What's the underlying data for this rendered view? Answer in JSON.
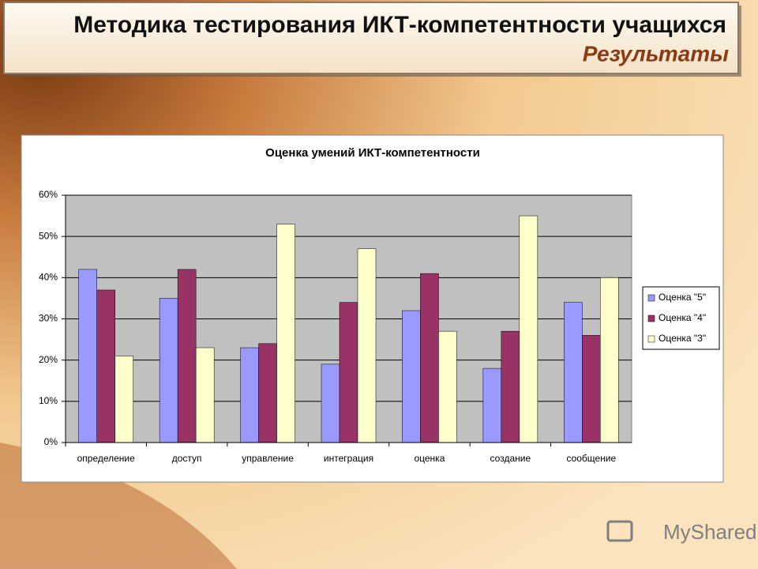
{
  "slide": {
    "title": "Методика тестирования ИКТ-компетентности учащихся",
    "subtitle": "Результаты",
    "watermark": "MyShared"
  },
  "chart_data": {
    "type": "bar",
    "title": "Оценка умений ИКТ-компетентности",
    "categories": [
      "определение",
      "доступ",
      "управление",
      "интеграция",
      "оценка",
      "создание",
      "сообщение"
    ],
    "series": [
      {
        "name": "Оценка \"5\"",
        "color": "#9999ff",
        "values": [
          42,
          35,
          23,
          19,
          32,
          18,
          34
        ]
      },
      {
        "name": "Оценка \"4\"",
        "color": "#993366",
        "values": [
          37,
          42,
          24,
          34,
          41,
          27,
          26
        ]
      },
      {
        "name": "Оценка \"3\"",
        "color": "#ffffcc",
        "values": [
          21,
          23,
          53,
          47,
          27,
          55,
          40
        ]
      }
    ],
    "ylim": [
      0,
      60
    ],
    "yticks": [
      {
        "value": 0,
        "label": "0%"
      },
      {
        "value": 10,
        "label": "10%"
      },
      {
        "value": 20,
        "label": "20%"
      },
      {
        "value": 30,
        "label": "30%"
      },
      {
        "value": 40,
        "label": "40%"
      },
      {
        "value": 50,
        "label": "50%"
      },
      {
        "value": 60,
        "label": "60%"
      }
    ],
    "grid": true,
    "legend": "right",
    "plot_background": "#c0c0c0"
  }
}
